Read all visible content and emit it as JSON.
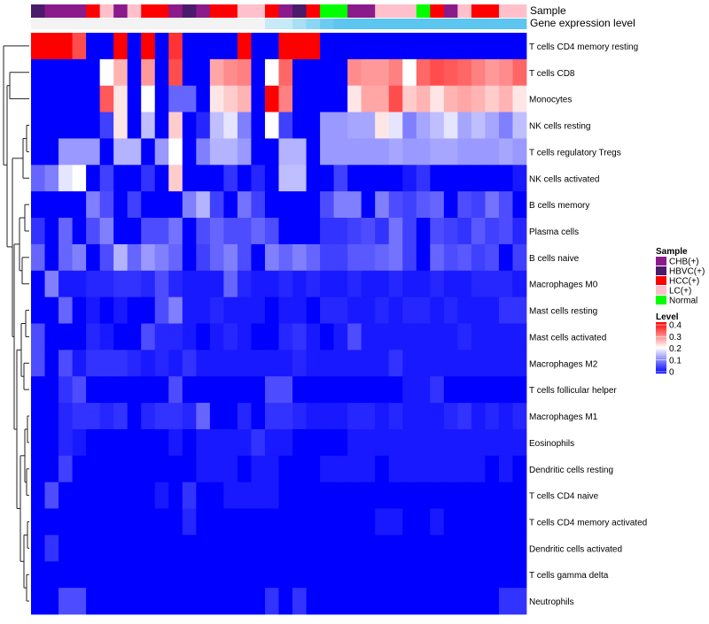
{
  "chart_data": {
    "type": "heatmap",
    "title": "",
    "annotation_labels": {
      "sample": "Sample",
      "gene_expression": "Gene expression level"
    },
    "legend": {
      "sample_title": "Sample",
      "sample_entries": [
        {
          "label": "CHB(+)",
          "color": "#8B1A8B"
        },
        {
          "label": "HBVC(+)",
          "color": "#4B1A6B"
        },
        {
          "label": "HCC(+)",
          "color": "#FF0000"
        },
        {
          "label": "LC(+)",
          "color": "#FFC0CB"
        },
        {
          "label": "Normal",
          "color": "#00FF00"
        }
      ],
      "level_title": "Level",
      "level_ticks": [
        "0.4",
        "0.3",
        "0.2",
        "0.1",
        "0"
      ],
      "level_range": [
        0,
        0.4
      ],
      "colorscale": [
        "#0000FF",
        "#FFFFFF",
        "#FF0000"
      ]
    },
    "sample_groups": [
      "HBVC(+)",
      "CHB(+)",
      "CHB(+)",
      "CHB(+)",
      "HCC(+)",
      "LC(+)",
      "CHB(+)",
      "LC(+)",
      "HCC(+)",
      "HCC(+)",
      "CHB(+)",
      "HBVC(+)",
      "CHB(+)",
      "HCC(+)",
      "HCC(+)",
      "LC(+)",
      "LC(+)",
      "HCC(+)",
      "CHB(+)",
      "HBVC(+)",
      "HCC(+)",
      "Normal",
      "Normal",
      "CHB(+)",
      "CHB(+)",
      "LC(+)",
      "LC(+)",
      "LC(+)",
      "Normal",
      "HCC(+)",
      "CHB(+)",
      "LC(+)",
      "HCC(+)",
      "HCC(+)",
      "LC(+)",
      "LC(+)"
    ],
    "gene_expression_bar": [
      "#F3F3F3",
      "#F3F3F3",
      "#F3F3F3",
      "#F3F3F3",
      "#F3F3F3",
      "#F3F3F3",
      "#F3F3F3",
      "#F3F3F3",
      "#F3F3F3",
      "#F3F3F3",
      "#F3F3F3",
      "#F3F3F3",
      "#F3F3F3",
      "#F3F3F3",
      "#F3F3F3",
      "#F3F3F3",
      "#F3F3F3",
      "#C6EAF8",
      "#C6EAF8",
      "#A8DFF6",
      "#8CD6F5",
      "#6CCBF2",
      "#5CC5F0",
      "#5CC5F0",
      "#5CC5F0",
      "#5CC5F0",
      "#5CC5F0",
      "#5CC5F0",
      "#5CC5F0",
      "#5CC5F0",
      "#5CC5F0",
      "#5CC5F0",
      "#5CC5F0",
      "#5CC5F0",
      "#5CC5F0",
      "#5CC5F0"
    ],
    "rows": [
      "T cells CD4 memory resting",
      "T cells CD8",
      "Monocytes",
      "NK cells resting",
      "T cells regulatory  Tregs",
      "NK cells activated",
      "B cells memory",
      "Plasma cells",
      "B cells naive",
      "Macrophages M0",
      "Mast cells resting",
      "Mast cells activated",
      "Macrophages M2",
      "T cells follicular helper",
      "Macrophages M1",
      "Eosinophils",
      "Dendritic cells resting",
      "T cells CD4 naive",
      "T cells CD4 memory activated",
      "Dendritic cells activated",
      "T cells gamma delta",
      "Neutrophils"
    ],
    "values": [
      [
        0.4,
        0.4,
        0.4,
        0.34,
        0,
        0,
        0.4,
        0,
        0.4,
        0,
        0.36,
        0,
        0,
        0,
        0,
        0.4,
        0,
        0,
        0.4,
        0.4,
        0.4,
        0,
        0,
        0,
        0,
        0,
        0,
        0,
        0,
        0,
        0,
        0,
        0,
        0,
        0,
        0
      ],
      [
        0,
        0,
        0,
        0,
        0,
        0.2,
        0.26,
        0,
        0.28,
        0,
        0.34,
        0,
        0,
        0.27,
        0.29,
        0.3,
        0,
        0.2,
        0.32,
        0,
        0,
        0,
        0,
        0.29,
        0.28,
        0.28,
        0.3,
        0.2,
        0.32,
        0.34,
        0.33,
        0.32,
        0.3,
        0.28,
        0.29,
        0.32
      ],
      [
        0,
        0,
        0,
        0,
        0,
        0.33,
        0.22,
        0,
        0.2,
        0,
        0.08,
        0.08,
        0,
        0.22,
        0.24,
        0.26,
        0,
        0.4,
        0.3,
        0,
        0,
        0,
        0,
        0.22,
        0.27,
        0.27,
        0.34,
        0.24,
        0.26,
        0.22,
        0.26,
        0.27,
        0.26,
        0.24,
        0.26,
        0.22
      ],
      [
        0,
        0,
        0,
        0,
        0,
        0.05,
        0.22,
        0,
        0.15,
        0,
        0.24,
        0,
        0.03,
        0.15,
        0.18,
        0.1,
        0,
        0.2,
        0.05,
        0,
        0,
        0.12,
        0.12,
        0.13,
        0.13,
        0.22,
        0.18,
        0.1,
        0.13,
        0.15,
        0.18,
        0.13,
        0.15,
        0.13,
        0.1,
        0.15
      ],
      [
        0,
        0,
        0.12,
        0.12,
        0.12,
        0,
        0.14,
        0.14,
        0,
        0.12,
        0.2,
        0,
        0.1,
        0.14,
        0.14,
        0.12,
        0,
        0,
        0.14,
        0.14,
        0,
        0.12,
        0.12,
        0.12,
        0.12,
        0.12,
        0.13,
        0.12,
        0.12,
        0.13,
        0.13,
        0.12,
        0.12,
        0.12,
        0.13,
        0.12
      ],
      [
        0.08,
        0.1,
        0.18,
        0.2,
        0,
        0.05,
        0,
        0,
        0.04,
        0,
        0.24,
        0,
        0,
        0,
        0.04,
        0,
        0.03,
        0,
        0.15,
        0.15,
        0,
        0,
        0.05,
        0,
        0,
        0,
        0,
        0.02,
        0.04,
        0,
        0,
        0,
        0,
        0,
        0,
        0.02
      ],
      [
        0,
        0,
        0,
        0,
        0.1,
        0.06,
        0,
        0.05,
        0,
        0,
        0,
        0.1,
        0.14,
        0.05,
        0,
        0.09,
        0.05,
        0,
        0,
        0,
        0,
        0.06,
        0.1,
        0.1,
        0,
        0.1,
        0.06,
        0.05,
        0.07,
        0.08,
        0,
        0.06,
        0.05,
        0.09,
        0.06,
        0
      ],
      [
        0.04,
        0,
        0.08,
        0,
        0.06,
        0.1,
        0,
        0,
        0.06,
        0.06,
        0.09,
        0,
        0.06,
        0.08,
        0.06,
        0.06,
        0.08,
        0.06,
        0,
        0,
        0,
        0.04,
        0.04,
        0.05,
        0.06,
        0.04,
        0.09,
        0.05,
        0,
        0.06,
        0.05,
        0.04,
        0.07,
        0.05,
        0.06,
        0.03
      ],
      [
        0.08,
        0,
        0.08,
        0.1,
        0,
        0.06,
        0.14,
        0.08,
        0.12,
        0.1,
        0.08,
        0,
        0.05,
        0.08,
        0.1,
        0.06,
        0,
        0.1,
        0.08,
        0.1,
        0.08,
        0.05,
        0.05,
        0.07,
        0.07,
        0.08,
        0.09,
        0.05,
        0,
        0.08,
        0.06,
        0.07,
        0.05,
        0.06,
        0,
        0.05
      ],
      [
        0,
        0.1,
        0.02,
        0.02,
        0.03,
        0.03,
        0.04,
        0.04,
        0.03,
        0.06,
        0.03,
        0.02,
        0.02,
        0.02,
        0.08,
        0.03,
        0.02,
        0.02,
        0.03,
        0.02,
        0.03,
        0.02,
        0.02,
        0.03,
        0.02,
        0.02,
        0.03,
        0.02,
        0.02,
        0.03,
        0.02,
        0.02,
        0.03,
        0.03,
        0.03,
        0.02
      ],
      [
        0,
        0,
        0.08,
        0,
        0.02,
        0,
        0.02,
        0,
        0,
        0.06,
        0.1,
        0.02,
        0.02,
        0.03,
        0.02,
        0.02,
        0.02,
        0,
        0.02,
        0.02,
        0,
        0.03,
        0.03,
        0.02,
        0.02,
        0.03,
        0.02,
        0.03,
        0.03,
        0.02,
        0.03,
        0.02,
        0.02,
        0.02,
        0.04,
        0.04
      ],
      [
        0.06,
        0,
        0,
        0,
        0.03,
        0.02,
        0,
        0,
        0.06,
        0.03,
        0.03,
        0.02,
        0,
        0.02,
        0.03,
        0.02,
        0,
        0,
        0.03,
        0.04,
        0.02,
        0,
        0.02,
        0.06,
        0.02,
        0.02,
        0.02,
        0.02,
        0.02,
        0.02,
        0.02,
        0.03,
        0.02,
        0.02,
        0.02,
        0.02
      ],
      [
        0.06,
        0,
        0.06,
        0.02,
        0.04,
        0.04,
        0.04,
        0.03,
        0.02,
        0.03,
        0.02,
        0.04,
        0.02,
        0.02,
        0.02,
        0.02,
        0.02,
        0.02,
        0.02,
        0.03,
        0.02,
        0.02,
        0.02,
        0.02,
        0.02,
        0.02,
        0.04,
        0.02,
        0.02,
        0.02,
        0.02,
        0.02,
        0.02,
        0.02,
        0.02,
        0.02
      ],
      [
        0,
        0,
        0.04,
        0.06,
        0,
        0,
        0,
        0,
        0,
        0,
        0.06,
        0,
        0,
        0,
        0,
        0,
        0,
        0.06,
        0.06,
        0,
        0,
        0,
        0,
        0,
        0,
        0,
        0,
        0.02,
        0.02,
        0.04,
        0,
        0,
        0,
        0,
        0,
        0
      ],
      [
        0,
        0,
        0.03,
        0.04,
        0.04,
        0.03,
        0.04,
        0,
        0.03,
        0.04,
        0.04,
        0.03,
        0.08,
        0,
        0,
        0.03,
        0,
        0.04,
        0.04,
        0.03,
        0.02,
        0.02,
        0.02,
        0.03,
        0.03,
        0.02,
        0.03,
        0.02,
        0.02,
        0.02,
        0.03,
        0.04,
        0.02,
        0.03,
        0.02,
        0.03
      ],
      [
        0,
        0,
        0.03,
        0.02,
        0,
        0,
        0,
        0,
        0,
        0,
        0.02,
        0,
        0.02,
        0.02,
        0.02,
        0.02,
        0.04,
        0.02,
        0.02,
        0,
        0,
        0,
        0,
        0.02,
        0.02,
        0.02,
        0.02,
        0.02,
        0.02,
        0.02,
        0.02,
        0.02,
        0.02,
        0.02,
        0.02,
        0.02
      ],
      [
        0,
        0,
        0.05,
        0,
        0,
        0,
        0,
        0,
        0,
        0,
        0,
        0,
        0.02,
        0.02,
        0.02,
        0,
        0.02,
        0.02,
        0,
        0,
        0,
        0.02,
        0.02,
        0.02,
        0.02,
        0,
        0.02,
        0.02,
        0.02,
        0.02,
        0.02,
        0.02,
        0.02,
        0,
        0.02,
        0
      ],
      [
        0,
        0.06,
        0,
        0,
        0,
        0,
        0,
        0,
        0,
        0.02,
        0,
        0.04,
        0,
        0,
        0.02,
        0.02,
        0.02,
        0.02,
        0,
        0,
        0,
        0,
        0,
        0,
        0,
        0,
        0,
        0,
        0,
        0,
        0,
        0,
        0,
        0,
        0,
        0
      ],
      [
        0,
        0,
        0,
        0,
        0,
        0,
        0,
        0,
        0,
        0,
        0,
        0.03,
        0,
        0,
        0,
        0,
        0,
        0,
        0,
        0,
        0,
        0,
        0,
        0,
        0,
        0.02,
        0.02,
        0,
        0,
        0.02,
        0,
        0,
        0,
        0,
        0,
        0
      ],
      [
        0,
        0.04,
        0,
        0,
        0,
        0,
        0,
        0,
        0,
        0,
        0,
        0,
        0,
        0,
        0,
        0,
        0,
        0,
        0,
        0,
        0,
        0,
        0,
        0,
        0,
        0,
        0,
        0,
        0,
        0,
        0,
        0,
        0,
        0,
        0,
        0
      ],
      [
        0,
        0,
        0,
        0,
        0,
        0,
        0,
        0,
        0,
        0,
        0,
        0,
        0,
        0,
        0,
        0,
        0,
        0,
        0,
        0,
        0,
        0,
        0,
        0,
        0,
        0,
        0,
        0,
        0,
        0,
        0,
        0,
        0,
        0,
        0,
        0
      ],
      [
        0,
        0,
        0.06,
        0.06,
        0,
        0,
        0,
        0,
        0,
        0,
        0,
        0,
        0,
        0,
        0,
        0,
        0,
        0.04,
        0,
        0.04,
        0,
        0,
        0,
        0,
        0,
        0,
        0,
        0,
        0,
        0,
        0,
        0,
        0,
        0,
        0.04,
        0.04
      ]
    ]
  }
}
